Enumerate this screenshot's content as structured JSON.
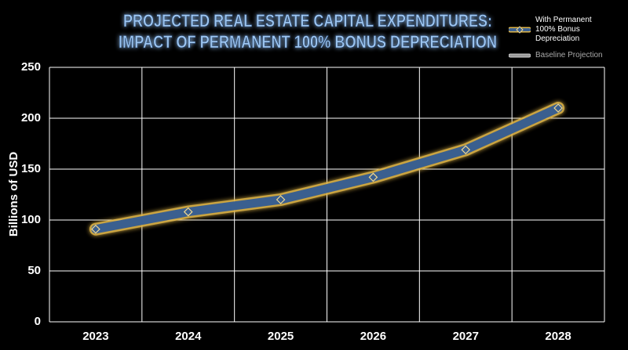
{
  "chart_data": {
    "type": "line",
    "title": "PROJECTED REAL ESTATE CAPITAL EXPENDITURES:",
    "subtitle": "IMPACT OF PERMANENT 100% BONUS DEPRECIATION",
    "y_label": "Billions of USD",
    "categories": [
      "2023",
      "2024",
      "2025",
      "2026",
      "2027",
      "2028"
    ],
    "series": [
      {
        "name": "Baseline Projection",
        "color": "#9a9a9a",
        "values": [
          91,
          108,
          120,
          142,
          169,
          210
        ]
      },
      {
        "name": "With Permanent 100% Bonus Depreciation",
        "color": "#3a5f8f",
        "values": [
          91,
          108,
          120,
          142,
          169,
          210
        ]
      }
    ],
    "ylim": [
      0,
      250
    ],
    "yticks": [
      0,
      50,
      100,
      150,
      200,
      250
    ],
    "grid": true,
    "legend": "upper right"
  }
}
